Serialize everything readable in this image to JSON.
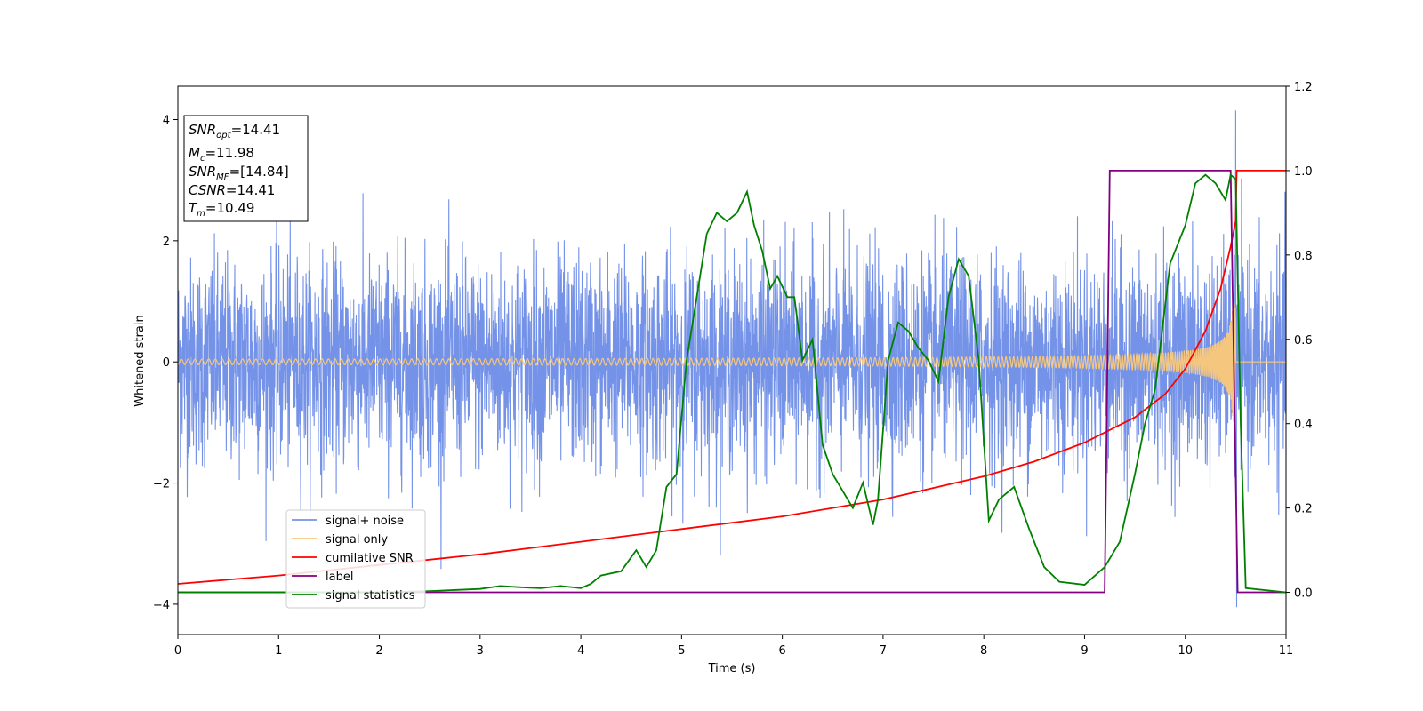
{
  "chart_data": {
    "type": "line",
    "xlabel": "Time (s)",
    "ylabel_left": "Whitened strain",
    "xlim": [
      0,
      11
    ],
    "ylim_left": [
      -4.5,
      4.55
    ],
    "ylim_right": [
      -0.1,
      1.2
    ],
    "x_ticks": [
      0,
      1,
      2,
      3,
      4,
      5,
      6,
      7,
      8,
      9,
      10,
      11
    ],
    "y_ticks_left": [
      -4,
      -2,
      0,
      2,
      4
    ],
    "y_ticks_right": [
      0.0,
      0.2,
      0.4,
      0.6,
      0.8,
      1.0,
      1.2
    ],
    "grid": false,
    "legend_position": "lower-left",
    "annotation": {
      "lines": [
        {
          "base": "SNR",
          "sub": "opt",
          "value": "=14.41"
        },
        {
          "base": "M",
          "sub": "c",
          "value": "=11.98"
        },
        {
          "base": "SNR",
          "sub": "MF",
          "value": "=[14.84]"
        },
        {
          "base": "CSNR",
          "sub": "",
          "value": "=14.41"
        },
        {
          "base": "T",
          "sub": "m",
          "value": "=10.49"
        }
      ]
    },
    "series": [
      {
        "name": "signal+ noise",
        "color": "#7492e8",
        "axis": "left",
        "noise_model": {
          "std": 0.85,
          "duration": [
            0,
            11
          ],
          "note": "dense whitened noise, peaks to ~4.15 near t=10.5"
        }
      },
      {
        "name": "signal only",
        "color": "#f5c77e",
        "axis": "left",
        "chirp": {
          "t_merger": 10.5,
          "amp_start": 0.02,
          "amp_end": 1.0
        }
      },
      {
        "name": "cumilative SNR",
        "color": "#ff0000",
        "axis": "right",
        "x": [
          0,
          1,
          2,
          3,
          4,
          5,
          6,
          7,
          8,
          8.5,
          9,
          9.5,
          9.8,
          10,
          10.2,
          10.35,
          10.45,
          10.5,
          10.51,
          11
        ],
        "y": [
          0.02,
          0.04,
          0.065,
          0.09,
          0.12,
          0.15,
          0.18,
          0.22,
          0.275,
          0.31,
          0.355,
          0.415,
          0.47,
          0.53,
          0.62,
          0.72,
          0.82,
          0.88,
          1.0,
          1.0
        ]
      },
      {
        "name": "label",
        "color": "#800080",
        "axis": "right",
        "x": [
          0,
          9.2,
          9.25,
          10.45,
          10.52,
          11
        ],
        "y": [
          0.0,
          0.0,
          1.0,
          1.0,
          0.0,
          0.0
        ]
      },
      {
        "name": "signal statistics",
        "color": "#008000",
        "axis": "right",
        "x": [
          0,
          1,
          2,
          2.5,
          3,
          3.2,
          3.4,
          3.6,
          3.8,
          4.0,
          4.1,
          4.2,
          4.4,
          4.55,
          4.65,
          4.75,
          4.85,
          4.95,
          5.05,
          5.15,
          5.25,
          5.35,
          5.45,
          5.55,
          5.65,
          5.72,
          5.8,
          5.88,
          5.95,
          6.05,
          6.12,
          6.2,
          6.3,
          6.4,
          6.5,
          6.6,
          6.7,
          6.8,
          6.9,
          6.95,
          7.05,
          7.15,
          7.25,
          7.35,
          7.45,
          7.55,
          7.65,
          7.75,
          7.85,
          7.95,
          8.05,
          8.15,
          8.3,
          8.45,
          8.6,
          8.75,
          9.0,
          9.2,
          9.35,
          9.5,
          9.6,
          9.7,
          9.85,
          10.0,
          10.1,
          10.2,
          10.3,
          10.4,
          10.45,
          10.5,
          10.55,
          10.6,
          11
        ],
        "y": [
          0.0,
          0.0,
          0.0,
          0.003,
          0.008,
          0.015,
          0.012,
          0.01,
          0.015,
          0.01,
          0.02,
          0.04,
          0.05,
          0.1,
          0.06,
          0.1,
          0.25,
          0.28,
          0.55,
          0.7,
          0.85,
          0.9,
          0.88,
          0.9,
          0.95,
          0.87,
          0.81,
          0.72,
          0.75,
          0.7,
          0.7,
          0.55,
          0.6,
          0.35,
          0.28,
          0.24,
          0.2,
          0.26,
          0.16,
          0.22,
          0.55,
          0.64,
          0.62,
          0.58,
          0.55,
          0.5,
          0.7,
          0.79,
          0.75,
          0.55,
          0.17,
          0.22,
          0.25,
          0.15,
          0.06,
          0.025,
          0.018,
          0.06,
          0.12,
          0.28,
          0.4,
          0.48,
          0.78,
          0.87,
          0.97,
          0.99,
          0.97,
          0.93,
          0.99,
          0.98,
          0.4,
          0.01,
          0.0
        ]
      }
    ]
  }
}
